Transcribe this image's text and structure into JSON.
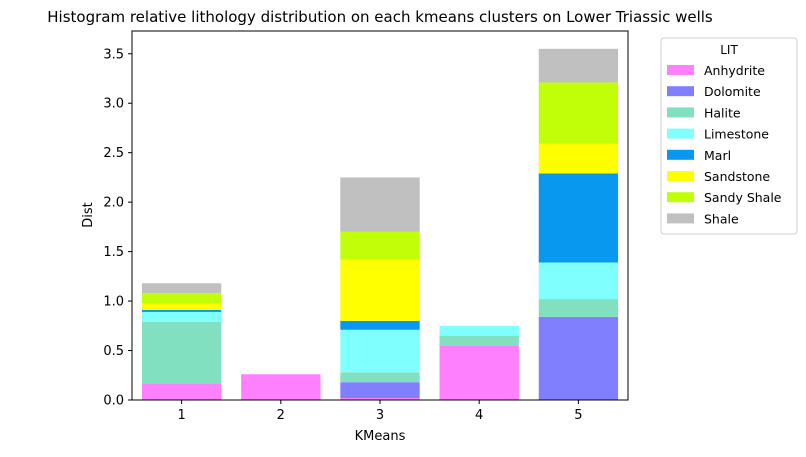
{
  "chart_data": {
    "type": "bar",
    "stacked": true,
    "title": "Histogram relative lithology distribution on each kmeans clusters on Lower Triassic wells",
    "xlabel": "KMeans",
    "ylabel": "Dist",
    "categories": [
      "1",
      "2",
      "3",
      "4",
      "5"
    ],
    "ylim": [
      0,
      3.73
    ],
    "yticks": [
      "0.0",
      "0.5",
      "1.0",
      "1.5",
      "2.0",
      "2.5",
      "3.0",
      "3.5"
    ],
    "grid": false,
    "legend": {
      "title": "LIT",
      "placement": "outside-right"
    },
    "series": [
      {
        "name": "Anhydrite",
        "color": "#ff80ff",
        "values": [
          0.17,
          0.26,
          0.02,
          0.55,
          0.0
        ]
      },
      {
        "name": "Dolomite",
        "color": "#8080ff",
        "values": [
          0.0,
          0.0,
          0.16,
          0.0,
          0.84
        ]
      },
      {
        "name": "Halite",
        "color": "#80e0c0",
        "values": [
          0.62,
          0.0,
          0.1,
          0.1,
          0.18
        ]
      },
      {
        "name": "Limestone",
        "color": "#80ffff",
        "values": [
          0.1,
          0.0,
          0.43,
          0.1,
          0.37
        ]
      },
      {
        "name": "Marl",
        "color": "#0898f0",
        "values": [
          0.02,
          0.0,
          0.09,
          0.0,
          0.9
        ]
      },
      {
        "name": "Sandstone",
        "color": "#ffff00",
        "values": [
          0.07,
          0.0,
          0.62,
          0.0,
          0.3
        ]
      },
      {
        "name": "Sandy Shale",
        "color": "#c0ff08",
        "values": [
          0.1,
          0.0,
          0.28,
          0.0,
          0.62
        ]
      },
      {
        "name": "Shale",
        "color": "#c0c0c0",
        "values": [
          0.1,
          0.0,
          0.55,
          0.0,
          0.34
        ]
      }
    ]
  }
}
